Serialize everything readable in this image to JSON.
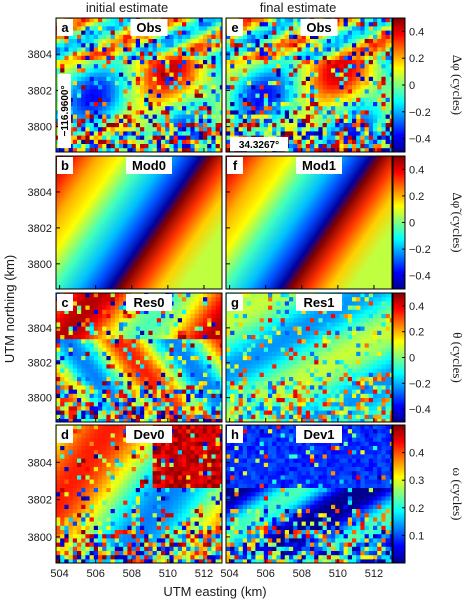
{
  "figure": {
    "column_titles": [
      "initial estimate",
      "final estimate"
    ],
    "x_axis_title": "UTM easting (km)",
    "y_axis_title": "UTM northing (km)",
    "x_ticks": [
      "504",
      "506",
      "508",
      "510",
      "512"
    ],
    "y_ticks": [
      "3800",
      "3802",
      "3804"
    ],
    "colors": {
      "jet": [
        "#00008f",
        "#0000ff",
        "#00ffff",
        "#ffff00",
        "#ff0000",
        "#800000"
      ],
      "panel_label_bg": "#ffffff",
      "axis": "#000000"
    }
  },
  "chart_data": [
    {
      "type": "heatmap",
      "row": "row1",
      "colorbar": {
        "label": "Δφ (cycles)",
        "ticks": [
          "0.4",
          "0.2",
          "0",
          "−0.2",
          "−0.4"
        ],
        "range": [
          -0.5,
          0.5
        ]
      },
      "panels": [
        {
          "letter": "a",
          "name": "Obs",
          "coord_label": "−116.9600°",
          "pattern": "obs"
        },
        {
          "letter": "e",
          "name": "Obs",
          "coord_label": "34.3267°",
          "pattern": "obs"
        }
      ]
    },
    {
      "type": "heatmap",
      "row": "row2",
      "colorbar": {
        "label": "Δφ̃ (cycles)",
        "ticks": [
          "0.4",
          "0.2",
          "0",
          "−0.2",
          "−0.4"
        ],
        "range": [
          -0.5,
          0.5
        ]
      },
      "panels": [
        {
          "letter": "b",
          "name": "Mod0",
          "pattern": "ramp"
        },
        {
          "letter": "f",
          "name": "Mod1",
          "pattern": "ramp"
        }
      ]
    },
    {
      "type": "heatmap",
      "row": "row3",
      "colorbar": {
        "label": "θ (cycles)",
        "ticks": [
          "0.4",
          "0.2",
          "0",
          "−0.2",
          "−0.4"
        ],
        "range": [
          -0.5,
          0.5
        ]
      },
      "panels": [
        {
          "letter": "c",
          "name": "Res0",
          "pattern": "res0"
        },
        {
          "letter": "g",
          "name": "Res1",
          "pattern": "res1"
        }
      ]
    },
    {
      "type": "heatmap",
      "row": "row4",
      "colorbar": {
        "label": "ω (cycles)",
        "ticks": [
          "0.4",
          "0.3",
          "0.2",
          "0.1"
        ],
        "range": [
          0.0,
          0.5
        ]
      },
      "panels": [
        {
          "letter": "d",
          "name": "Dev0",
          "pattern": "dev0"
        },
        {
          "letter": "h",
          "name": "Dev1",
          "pattern": "dev1"
        }
      ]
    }
  ]
}
